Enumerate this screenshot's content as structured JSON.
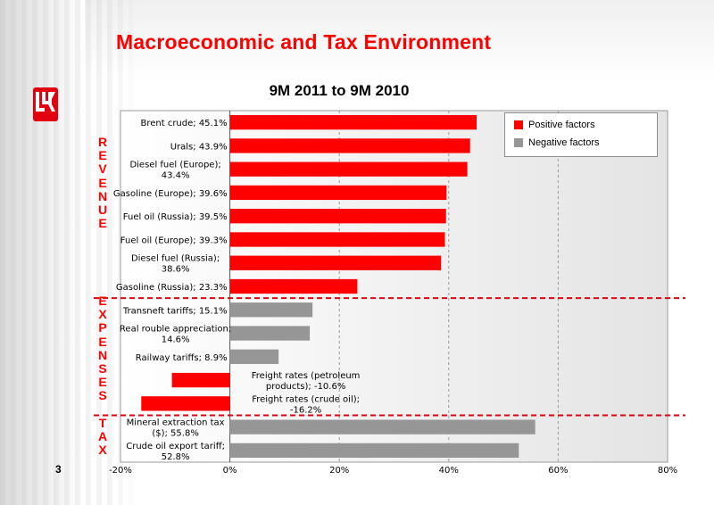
{
  "slide": {
    "title": "Macroeconomic and Tax Environment",
    "page_number": "3"
  },
  "sections": [
    {
      "name": "REVENUE",
      "letters": [
        "R",
        "E",
        "V",
        "E",
        "N",
        "U",
        "E"
      ]
    },
    {
      "name": "EXPENSES",
      "letters": [
        "E",
        "X",
        "P",
        "E",
        "N",
        "S",
        "E",
        "S"
      ]
    },
    {
      "name": "TAX",
      "letters": [
        "T",
        "A",
        "X"
      ]
    }
  ],
  "colors": {
    "positive": "#ff0000",
    "negative": "#969696",
    "title_red": "#ff0000",
    "divider": "#e8000b",
    "plot_bg": "#ececec"
  },
  "chart_data": {
    "type": "bar",
    "orientation": "horizontal",
    "title": "9M 2011 to 9M 2010",
    "xlim": [
      -20,
      80
    ],
    "x_ticks": [
      "-20%",
      "0%",
      "20%",
      "40%",
      "60%",
      "80%"
    ],
    "grid": "vertical dashed",
    "legend_position": "top-right",
    "legend": [
      "Positive factors",
      "Negative factors"
    ],
    "bars": [
      {
        "label": [
          "Brent crude; 45.1%"
        ],
        "value": 45.1,
        "factor": "positive",
        "section": "revenue"
      },
      {
        "label": [
          "Urals; 43.9%"
        ],
        "value": 43.9,
        "factor": "positive",
        "section": "revenue"
      },
      {
        "label": [
          "Diesel fuel (Europe);",
          "43.4%"
        ],
        "value": 43.4,
        "factor": "positive",
        "section": "revenue"
      },
      {
        "label": [
          "Gasoline (Europe); 39.6%"
        ],
        "value": 39.6,
        "factor": "positive",
        "section": "revenue"
      },
      {
        "label": [
          "Fuel oil (Russia); 39.5%"
        ],
        "value": 39.5,
        "factor": "positive",
        "section": "revenue"
      },
      {
        "label": [
          "Fuel oil (Europe); 39.3%"
        ],
        "value": 39.3,
        "factor": "positive",
        "section": "revenue"
      },
      {
        "label": [
          "Diesel fuel (Russia);",
          "38.6%"
        ],
        "value": 38.6,
        "factor": "positive",
        "section": "revenue"
      },
      {
        "label": [
          "Gasoline (Russia); 23.3%"
        ],
        "value": 23.3,
        "factor": "positive",
        "section": "revenue"
      },
      {
        "label": [
          "Transneft tariffs; 15.1%"
        ],
        "value": 15.1,
        "factor": "negative",
        "section": "expenses"
      },
      {
        "label": [
          "Real rouble appreciation;",
          "14.6%"
        ],
        "value": 14.6,
        "factor": "negative",
        "section": "expenses"
      },
      {
        "label": [
          "Railway tariffs; 8.9%"
        ],
        "value": 8.9,
        "factor": "negative",
        "section": "expenses"
      },
      {
        "label": [
          "Freight rates (petroleum",
          "products); -10.6%"
        ],
        "value": -10.6,
        "factor": "positive",
        "section": "expenses"
      },
      {
        "label": [
          "Freight rates (crude oil);",
          "-16.2%"
        ],
        "value": -16.2,
        "factor": "positive",
        "section": "expenses"
      },
      {
        "label": [
          "Mineral extraction tax",
          "($); 55.8%"
        ],
        "value": 55.8,
        "factor": "negative",
        "section": "tax"
      },
      {
        "label": [
          "Crude oil export tariff;",
          "52.8%"
        ],
        "value": 52.8,
        "factor": "negative",
        "section": "tax"
      }
    ]
  }
}
